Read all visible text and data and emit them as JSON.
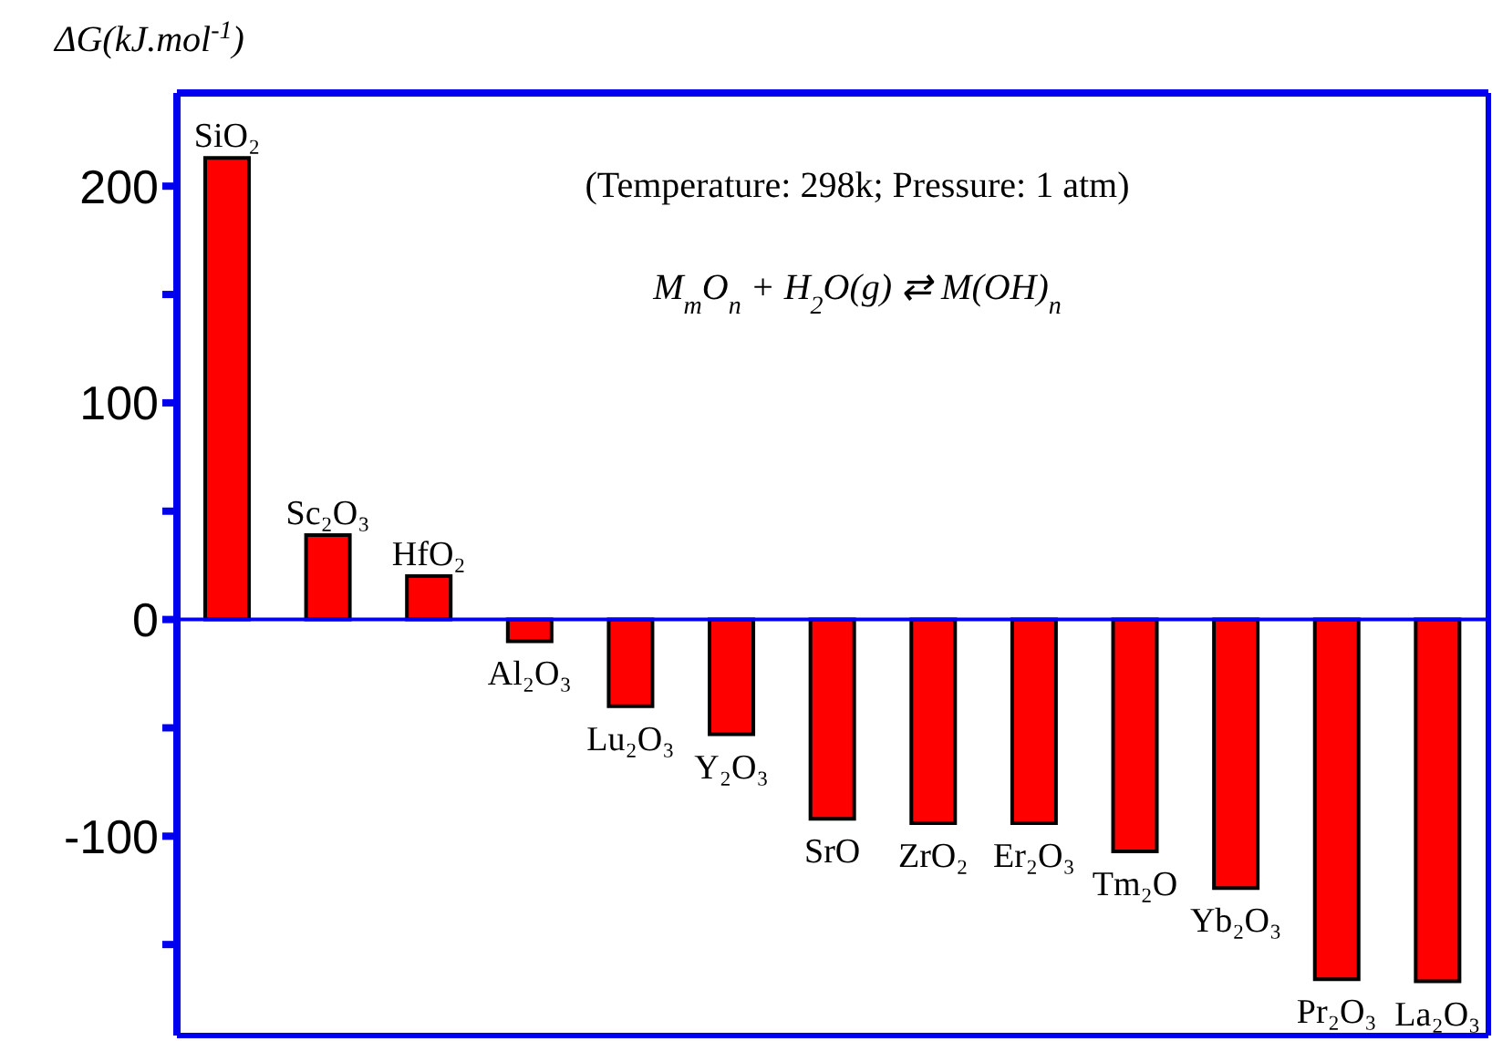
{
  "chart_data": {
    "type": "bar",
    "ylabel": "ΔG(kJ.mol$^{-1}$)",
    "categories": [
      "SiO₂",
      "Sc₂O₃",
      "HfO₂",
      "Al₂O₃",
      "Lu₂O₃",
      "Y₂O₃",
      "SrO",
      "ZrO₂",
      "Er₂O₃",
      "Tm₂O",
      "Yb₂O₃",
      "Pr₂O₃",
      "La₂O₃"
    ],
    "values": [
      213,
      39,
      20,
      -10,
      -40,
      -53,
      -92,
      -94,
      -94,
      -107,
      -124,
      -166,
      -167
    ],
    "color": "#ff0000",
    "ylim": [
      -192,
      243
    ],
    "yticks": [
      {
        "value": -150,
        "label": null
      },
      -100,
      {
        "value": -50,
        "label": null
      },
      0,
      {
        "value": 50,
        "label": null
      },
      100,
      {
        "value": 150,
        "label": null
      },
      200
    ],
    "tick_labels": "y",
    "ref_lines": [
      {
        "axis": "y",
        "value": 0,
        "color": "#0000ee"
      }
    ],
    "annotations": [
      "(Temperature: 298k; Pressure: 1 atm)",
      "M$_{m}$O$_{n}$ + H$_{2}$O(g) ⇄ M(OH)$_{n}$"
    ]
  }
}
